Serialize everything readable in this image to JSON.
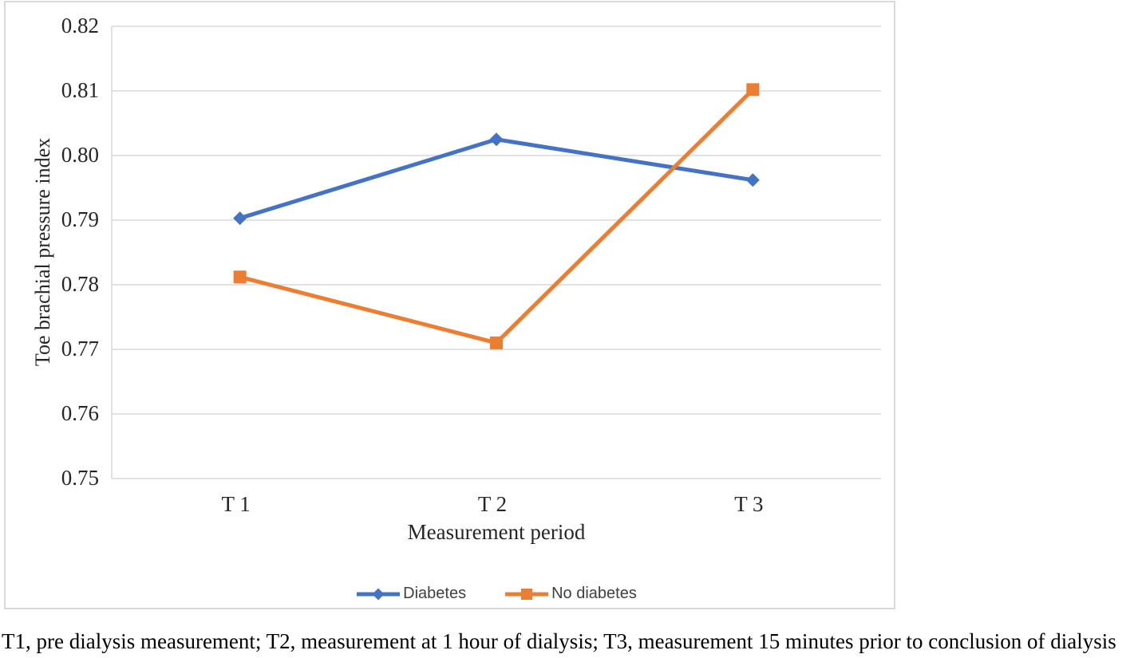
{
  "figure": {
    "caption": "T1, pre dialysis measurement; T2, measurement at 1 hour of dialysis; T3, measurement 15 minutes prior to conclusion of dialysis"
  },
  "chart_data": {
    "type": "line",
    "title": "",
    "xlabel": "Measurement period",
    "ylabel": "Toe brachial pressure index",
    "categories": [
      "T 1",
      "T 2",
      "T 3"
    ],
    "series": [
      {
        "name": "Diabetes",
        "color": "#4472C4",
        "marker": "diamond",
        "values": [
          0.7903,
          0.8025,
          0.7962
        ]
      },
      {
        "name": "No diabetes",
        "color": "#ED7D31",
        "marker": "square",
        "values": [
          0.7812,
          0.771,
          0.8102
        ]
      }
    ],
    "ylim": [
      0.75,
      0.82
    ],
    "yticks": [
      0.75,
      0.76,
      0.77,
      0.78,
      0.79,
      0.8,
      0.81,
      0.82
    ],
    "ytick_labels": [
      "0.75",
      "0.76",
      "0.77",
      "0.78",
      "0.79",
      "0.80",
      "0.81",
      "0.82"
    ],
    "grid": true,
    "gridline_color": "#D9D9D9",
    "axis_line_color": "#D9D9D9",
    "legend_position": "bottom"
  }
}
